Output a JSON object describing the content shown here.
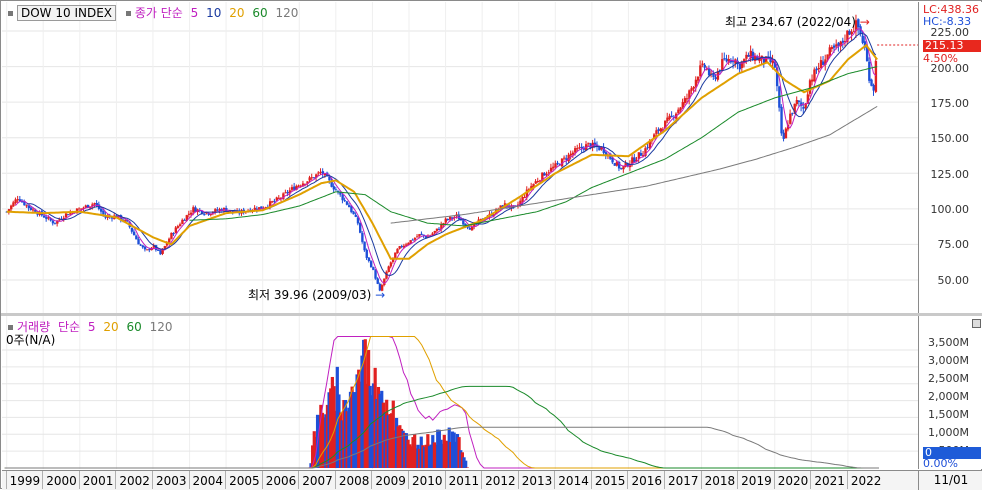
{
  "legend": {
    "ticker": "DOW 10 INDEX",
    "price_label": "종가 단순",
    "ma_periods": [
      "5",
      "10",
      "20",
      "60",
      "120"
    ],
    "volume_label": "거래량",
    "volume_ma_label": "단순",
    "volume_ma_periods": [
      "5",
      "20",
      "60",
      "120"
    ],
    "volume_info": "0주(N/A)"
  },
  "scale": {
    "lc": "LC:438.36",
    "hc": "HC:-8.33",
    "current_price": "215.13",
    "change_pct": "4.50%",
    "current_volume": "0",
    "volume_pct": "0.00%",
    "price_ticks": [
      "225.00",
      "200.00",
      "175.00",
      "150.00",
      "125.00",
      "100.00",
      "75.00",
      "50.00"
    ],
    "volume_ticks": [
      "3,500M",
      "3,000M",
      "2,500M",
      "2,000M",
      "1,500M",
      "1,000M",
      "500M"
    ]
  },
  "annotations": {
    "high": "최고 234.67 (2022/04)",
    "low": "최저 39.96 (2009/03)"
  },
  "time_axis": {
    "years": [
      "1999",
      "2000",
      "2001",
      "2002",
      "2003",
      "2004",
      "2005",
      "2006",
      "2007",
      "2008",
      "2009",
      "2010",
      "2011",
      "2012",
      "2013",
      "2014",
      "2015",
      "2016",
      "2017",
      "2018",
      "2019",
      "2020",
      "2021",
      "2022"
    ],
    "current_date": "11/01"
  },
  "colors": {
    "up": "#e02020",
    "down": "#1e4fd8",
    "ma5": "#c020c0",
    "ma10": "#1a3aa0",
    "ma20": "#e0a000",
    "ma60": "#1a8a2a",
    "ma120": "#7a7a7a"
  },
  "chart_data": {
    "type": "candlestick",
    "title": "DOW 10 INDEX",
    "x_range": [
      1998.9,
      2022.85
    ],
    "y_range": [
      30,
      240
    ],
    "volume_range": [
      0,
      4000
    ],
    "close_anchors": [
      [
        1999.0,
        98
      ],
      [
        1999.3,
        108
      ],
      [
        1999.6,
        101
      ],
      [
        2000.0,
        95
      ],
      [
        2000.3,
        90
      ],
      [
        2000.6,
        96
      ],
      [
        2001.0,
        100
      ],
      [
        2001.4,
        104
      ],
      [
        2001.7,
        94
      ],
      [
        2002.0,
        95
      ],
      [
        2002.3,
        90
      ],
      [
        2002.6,
        76
      ],
      [
        2002.8,
        70
      ],
      [
        2003.0,
        74
      ],
      [
        2003.2,
        68
      ],
      [
        2003.5,
        82
      ],
      [
        2003.8,
        92
      ],
      [
        2004.1,
        100
      ],
      [
        2004.5,
        97
      ],
      [
        2004.9,
        100
      ],
      [
        2005.3,
        97
      ],
      [
        2005.7,
        100
      ],
      [
        2006.0,
        101
      ],
      [
        2006.5,
        108
      ],
      [
        2006.9,
        116
      ],
      [
        2007.3,
        121
      ],
      [
        2007.6,
        126
      ],
      [
        2007.85,
        118
      ],
      [
        2008.1,
        110
      ],
      [
        2008.35,
        102
      ],
      [
        2008.6,
        90
      ],
      [
        2008.8,
        68
      ],
      [
        2009.0,
        58
      ],
      [
        2009.2,
        42
      ],
      [
        2009.45,
        60
      ],
      [
        2009.7,
        72
      ],
      [
        2010.0,
        77
      ],
      [
        2010.3,
        82
      ],
      [
        2010.5,
        80
      ],
      [
        2010.8,
        86
      ],
      [
        2011.0,
        92
      ],
      [
        2011.3,
        95
      ],
      [
        2011.5,
        90
      ],
      [
        2011.7,
        86
      ],
      [
        2011.9,
        91
      ],
      [
        2012.3,
        97
      ],
      [
        2012.6,
        103
      ],
      [
        2012.9,
        100
      ],
      [
        2013.3,
        115
      ],
      [
        2013.7,
        125
      ],
      [
        2014.0,
        130
      ],
      [
        2014.5,
        140
      ],
      [
        2014.9,
        145
      ],
      [
        2015.3,
        142
      ],
      [
        2015.6,
        133
      ],
      [
        2015.8,
        128
      ],
      [
        2016.0,
        132
      ],
      [
        2016.4,
        140
      ],
      [
        2016.8,
        155
      ],
      [
        2017.2,
        165
      ],
      [
        2017.6,
        178
      ],
      [
        2017.95,
        198
      ],
      [
        2018.1,
        200
      ],
      [
        2018.3,
        190
      ],
      [
        2018.6,
        204
      ],
      [
        2018.9,
        206
      ],
      [
        2019.0,
        200
      ],
      [
        2019.3,
        208
      ],
      [
        2019.6,
        205
      ],
      [
        2019.9,
        203
      ],
      [
        2020.0,
        200
      ],
      [
        2020.1,
        175
      ],
      [
        2020.2,
        145
      ],
      [
        2020.4,
        165
      ],
      [
        2020.6,
        175
      ],
      [
        2020.8,
        170
      ],
      [
        2020.95,
        190
      ],
      [
        2021.2,
        200
      ],
      [
        2021.5,
        210
      ],
      [
        2021.8,
        215
      ],
      [
        2022.0,
        224
      ],
      [
        2022.25,
        230
      ],
      [
        2022.45,
        214
      ],
      [
        2022.6,
        190
      ],
      [
        2022.7,
        185
      ],
      [
        2022.8,
        215
      ]
    ],
    "volume_anchors": [
      [
        1999.0,
        0
      ],
      [
        2007.3,
        0
      ],
      [
        2007.4,
        900
      ],
      [
        2007.6,
        1700
      ],
      [
        2007.8,
        1900
      ],
      [
        2008.0,
        2000
      ],
      [
        2008.2,
        1700
      ],
      [
        2008.4,
        2200
      ],
      [
        2008.6,
        2600
      ],
      [
        2008.8,
        3300
      ],
      [
        2009.0,
        2600
      ],
      [
        2009.2,
        2400
      ],
      [
        2009.4,
        2000
      ],
      [
        2009.6,
        1400
      ],
      [
        2009.8,
        1000
      ],
      [
        2010.1,
        800
      ],
      [
        2010.3,
        750
      ],
      [
        2010.6,
        850
      ],
      [
        2010.9,
        950
      ],
      [
        2011.2,
        1000
      ],
      [
        2011.4,
        700
      ],
      [
        2011.6,
        0
      ],
      [
        2022.85,
        0
      ]
    ],
    "volume_spikes": [
      [
        2007.9,
        2700
      ],
      [
        2008.05,
        3000
      ],
      [
        2008.75,
        3800
      ],
      [
        2008.9,
        3500
      ],
      [
        2009.2,
        2200
      ],
      [
        2009.55,
        2000
      ],
      [
        2010.15,
        1000
      ],
      [
        2011.1,
        1200
      ]
    ],
    "ma_lines": {
      "ma20_anchors": [
        [
          1999.0,
          98
        ],
        [
          2000.0,
          97
        ],
        [
          2001.0,
          98
        ],
        [
          2002.0,
          94
        ],
        [
          2003.0,
          80
        ],
        [
          2003.5,
          75
        ],
        [
          2004.0,
          88
        ],
        [
          2005.0,
          97
        ],
        [
          2006.0,
          99
        ],
        [
          2007.0,
          110
        ],
        [
          2007.6,
          118
        ],
        [
          2008.0,
          120
        ],
        [
          2008.5,
          112
        ],
        [
          2009.0,
          90
        ],
        [
          2009.5,
          65
        ],
        [
          2010.0,
          65
        ],
        [
          2010.5,
          75
        ],
        [
          2011.0,
          82
        ],
        [
          2012.0,
          92
        ],
        [
          2013.0,
          108
        ],
        [
          2014.0,
          125
        ],
        [
          2015.0,
          138
        ],
        [
          2016.0,
          137
        ],
        [
          2017.0,
          155
        ],
        [
          2018.0,
          178
        ],
        [
          2019.0,
          195
        ],
        [
          2019.8,
          203
        ],
        [
          2020.3,
          190
        ],
        [
          2020.8,
          182
        ],
        [
          2021.5,
          190
        ],
        [
          2022.0,
          205
        ],
        [
          2022.5,
          215
        ],
        [
          2022.8,
          205
        ]
      ],
      "ma60_anchors": [
        [
          2004.0,
          92
        ],
        [
          2005.0,
          93
        ],
        [
          2006.0,
          96
        ],
        [
          2007.0,
          102
        ],
        [
          2008.0,
          112
        ],
        [
          2008.8,
          110
        ],
        [
          2009.5,
          98
        ],
        [
          2010.5,
          90
        ],
        [
          2011.5,
          88
        ],
        [
          2012.5,
          93
        ],
        [
          2013.5,
          98
        ],
        [
          2014.3,
          105
        ],
        [
          2015.0,
          115
        ],
        [
          2016.0,
          125
        ],
        [
          2017.0,
          135
        ],
        [
          2018.0,
          150
        ],
        [
          2019.0,
          168
        ],
        [
          2020.0,
          178
        ],
        [
          2021.0,
          185
        ],
        [
          2022.0,
          195
        ],
        [
          2022.8,
          200
        ]
      ],
      "ma120_anchors": [
        [
          2009.5,
          90
        ],
        [
          2010.5,
          93
        ],
        [
          2011.5,
          96
        ],
        [
          2012.5,
          100
        ],
        [
          2013.5,
          104
        ],
        [
          2014.5,
          108
        ],
        [
          2015.5,
          112
        ],
        [
          2016.5,
          116
        ],
        [
          2017.5,
          122
        ],
        [
          2018.5,
          128
        ],
        [
          2019.5,
          135
        ],
        [
          2020.5,
          143
        ],
        [
          2021.5,
          152
        ],
        [
          2022.8,
          172
        ]
      ]
    }
  }
}
